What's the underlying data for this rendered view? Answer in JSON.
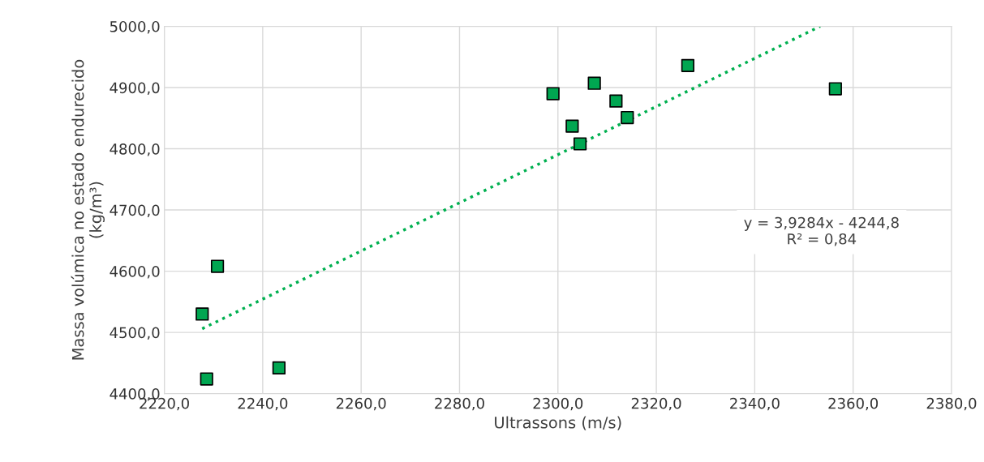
{
  "chart_data": {
    "type": "scatter",
    "xlabel": "Ultrassons (m/s)",
    "ylabel": "Massa volúmica no estado endurecido\n(kg/m³)",
    "xlim": [
      2220,
      2380
    ],
    "ylim": [
      4400,
      5000
    ],
    "xticks": [
      {
        "value": 2220,
        "label": "2220,0"
      },
      {
        "value": 2240,
        "label": "2240,0"
      },
      {
        "value": 2260,
        "label": "2260,0"
      },
      {
        "value": 2280,
        "label": "2280,0"
      },
      {
        "value": 2300,
        "label": "2300,0"
      },
      {
        "value": 2320,
        "label": "2320,0"
      },
      {
        "value": 2340,
        "label": "2340,0"
      },
      {
        "value": 2360,
        "label": "2360,0"
      },
      {
        "value": 2380,
        "label": "2380,0"
      }
    ],
    "yticks": [
      {
        "value": 4400,
        "label": "4400,0"
      },
      {
        "value": 4500,
        "label": "4500,0"
      },
      {
        "value": 4600,
        "label": "4600,0"
      },
      {
        "value": 4700,
        "label": "4700,0"
      },
      {
        "value": 4800,
        "label": "4800,0"
      },
      {
        "value": 4900,
        "label": "4900,0"
      },
      {
        "value": 5000,
        "label": "5000,0"
      }
    ],
    "grid": true,
    "marker": "square",
    "series": [
      {
        "color": "#00a651",
        "x": [
          2227.7,
          2230.8,
          2228.6,
          2243.3,
          2299.0,
          2302.9,
          2304.5,
          2307.4,
          2311.8,
          2314.1,
          2326.4,
          2356.4
        ],
        "values": [
          4530,
          4608,
          4424,
          4442,
          4890,
          4837,
          4808,
          4907,
          4878,
          4851,
          4936,
          4898
        ]
      },
      {
        "type": "line",
        "color": "#00b050",
        "line_style": "dotted",
        "marker": "none",
        "x": [
          2227.7,
          2353.3
        ],
        "values": [
          4506,
          5000
        ]
      }
    ],
    "annotations": [
      "y = 3,9284x - 4244,8\nR² = 0,84"
    ]
  }
}
